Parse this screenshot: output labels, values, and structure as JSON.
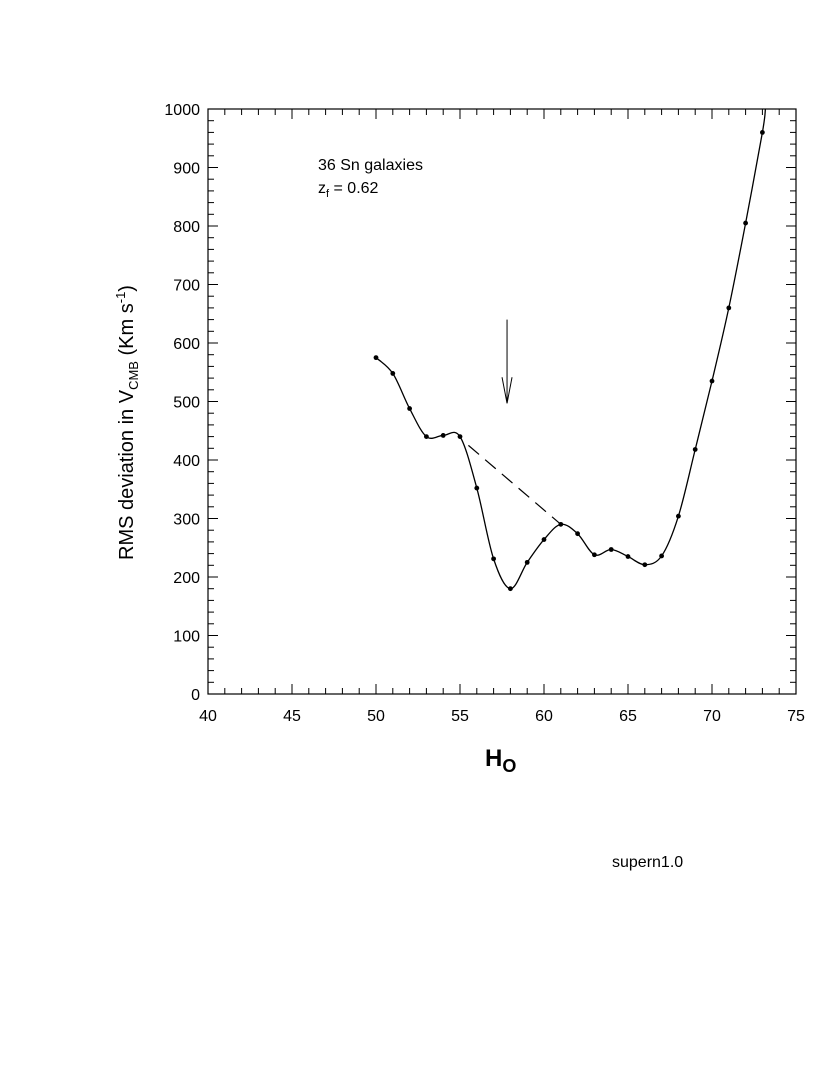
{
  "chart_data": {
    "type": "line",
    "xlabel": "H",
    "xlabel_sub": "O",
    "ylabel_parts": {
      "main": "RMS deviation in V",
      "sub": "CMB",
      "unit_open": " (Km s",
      "sup": "-1",
      "unit_close": ")"
    },
    "xlim": [
      40,
      75
    ],
    "ylim": [
      0,
      1000
    ],
    "x_ticks": [
      40,
      45,
      50,
      55,
      60,
      65,
      70,
      75
    ],
    "y_ticks": [
      0,
      100,
      200,
      300,
      400,
      500,
      600,
      700,
      800,
      900,
      1000
    ],
    "grid": false,
    "series": [
      {
        "x": [
          50,
          51,
          52,
          53,
          54,
          55,
          56,
          57,
          58,
          59,
          60,
          61,
          62,
          63,
          64,
          65,
          66,
          67,
          68,
          69,
          70,
          71,
          72,
          73
        ],
        "y": [
          575,
          548,
          488,
          440,
          442,
          440,
          352,
          231,
          180,
          225,
          264,
          290,
          274,
          238,
          247,
          235,
          221,
          236,
          304,
          418,
          535,
          660,
          805,
          960
        ]
      }
    ],
    "dashed_line": {
      "x": [
        55.5,
        61
      ],
      "y": [
        425,
        290
      ]
    },
    "arrow": {
      "x": 57.8,
      "y_from": 640,
      "y_to": 497
    },
    "annotations": {
      "line1": "36 Sn galaxies",
      "line2_pre": "z",
      "line2_sub": "f",
      "line2_post": " = 0.62"
    }
  },
  "footer": {
    "label": "supern1.0"
  }
}
